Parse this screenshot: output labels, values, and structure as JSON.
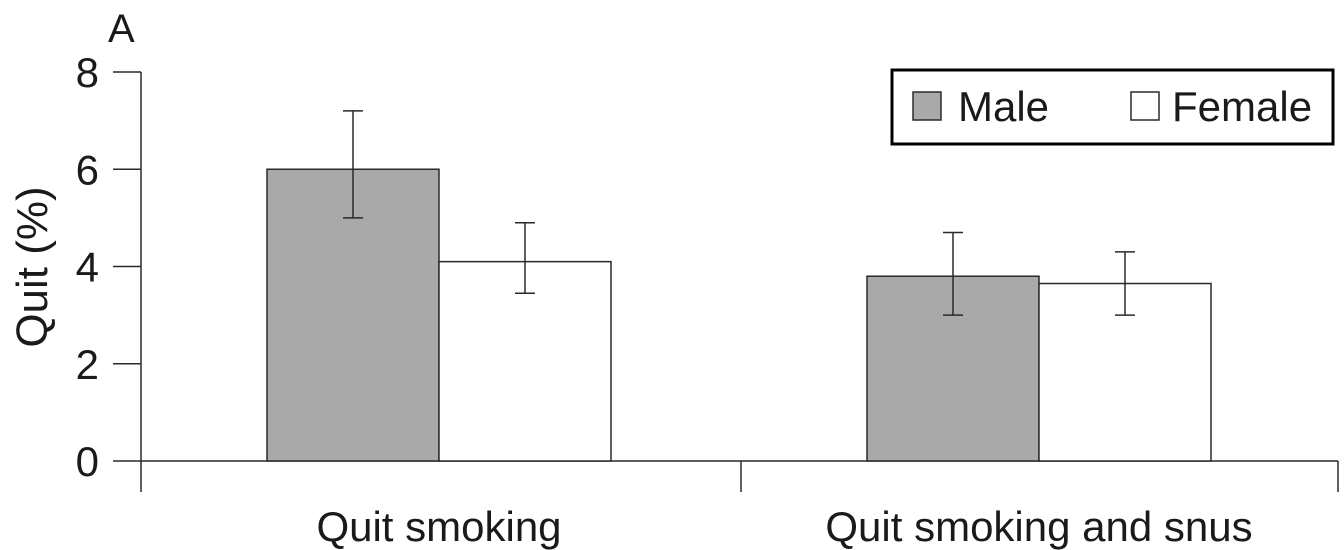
{
  "chart_data": {
    "type": "bar",
    "panel_label": "A",
    "title": "",
    "xlabel": "",
    "ylabel": "Quit (%)",
    "ylim": [
      0,
      8
    ],
    "yticks": [
      "0",
      "2",
      "4",
      "6",
      "8"
    ],
    "categories": [
      "Quit smoking",
      "Quit smoking and snus"
    ],
    "series": [
      {
        "name": "Male",
        "color": "#a9a9a9",
        "values": [
          6.0,
          3.8
        ],
        "err_low": [
          5.0,
          3.0
        ],
        "err_high": [
          7.2,
          4.7
        ]
      },
      {
        "name": "Female",
        "color": "#ffffff",
        "values": [
          4.1,
          3.65
        ],
        "err_low": [
          3.45,
          3.0
        ],
        "err_high": [
          4.9,
          4.3
        ]
      }
    ],
    "legend_position": "top-right",
    "grid": false
  }
}
